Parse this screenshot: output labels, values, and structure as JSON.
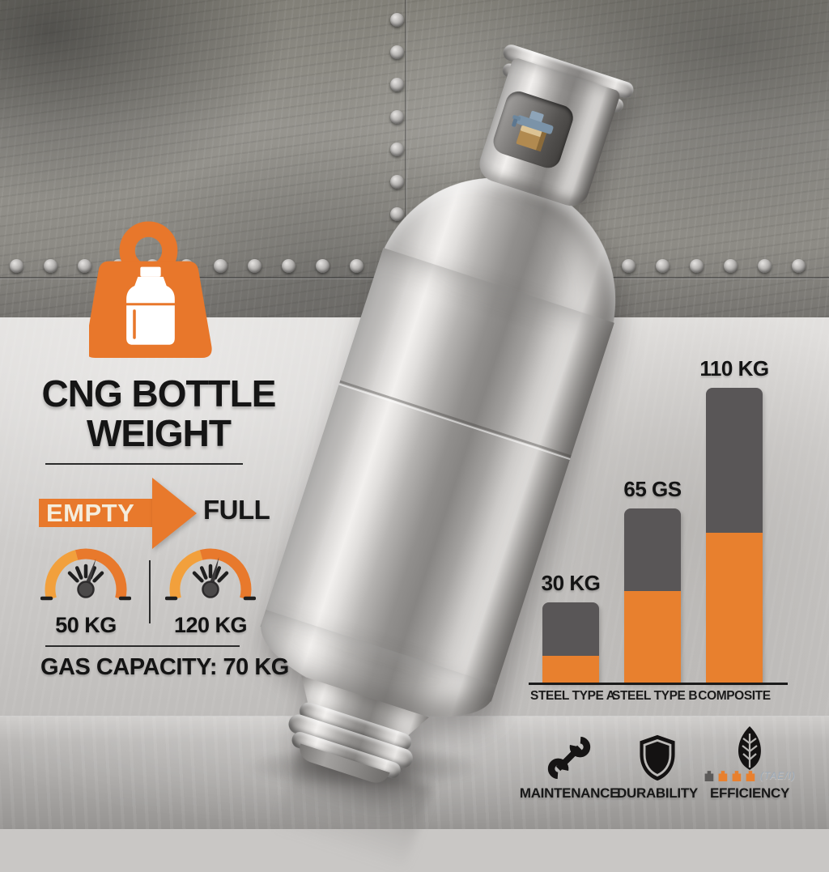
{
  "title": {
    "line1": "CNG BOTTLE",
    "line2": "WEIGHT"
  },
  "arrow": {
    "from": "EMPTY",
    "to": "FULL"
  },
  "gauges": [
    {
      "label": "50 KG",
      "meaning": "empty"
    },
    {
      "label": "120 KG",
      "meaning": "full"
    }
  ],
  "capacity": {
    "label": "GAS CAPACITY: 70 KG"
  },
  "chart_data": {
    "type": "bar",
    "stacked": true,
    "categories": [
      "STEEL TYPE A",
      "STEEL TYPE B",
      "COMPOSITE"
    ],
    "value_labels": [
      "30 KG",
      "65 GS",
      "110 KG"
    ],
    "totals_kg": [
      30,
      65,
      110
    ],
    "series": [
      {
        "name": "lower-segment",
        "values": [
          10,
          34,
          56
        ],
        "color": "#e8802e"
      },
      {
        "name": "upper-segment",
        "values": [
          20,
          31,
          54
        ],
        "color": "#595657"
      }
    ],
    "ylim": [
      0,
      110
    ],
    "grid": false,
    "legend": "none"
  },
  "features": [
    {
      "icon": "wrench-icon",
      "label": "MAINTENANCE"
    },
    {
      "icon": "shield-icon",
      "label": "DURABILITY"
    },
    {
      "icon": "leaf-icon",
      "label": "EFFICIENCY",
      "rating": {
        "filled": 3,
        "total": 4,
        "filled_color": "#e8802e",
        "empty_color": "#5c5a59"
      },
      "artifact": "(TAE/I)"
    }
  ],
  "colors": {
    "orange": "#e8792c",
    "orange_light": "#f2a03c",
    "bar_gray": "#595657",
    "cream_text": "#f4eddd",
    "ink": "#141414"
  }
}
